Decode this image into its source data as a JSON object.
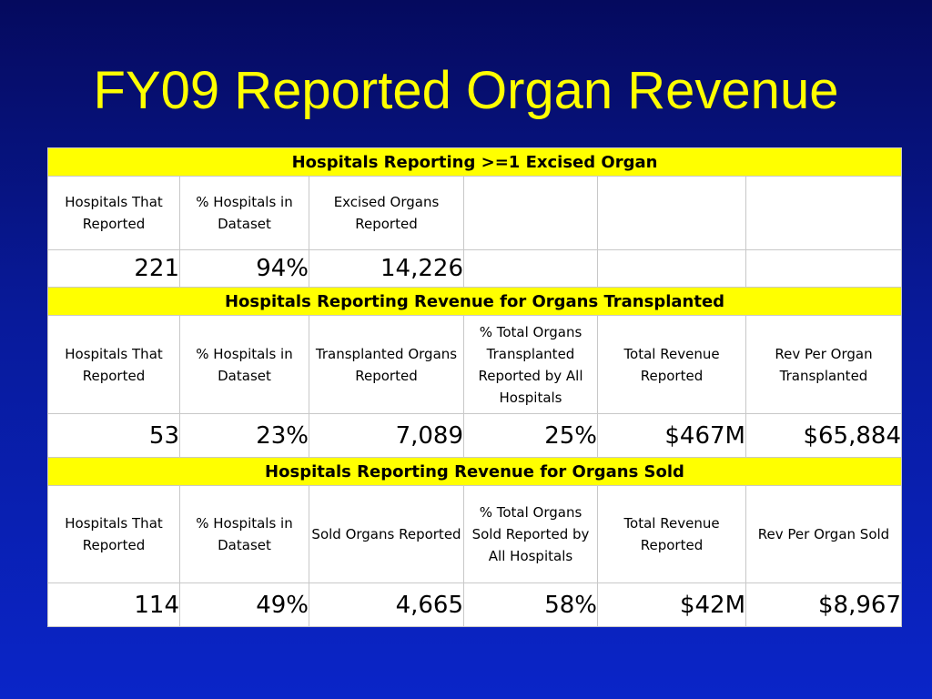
{
  "slide": {
    "title": "FY09 Reported Organ Revenue"
  },
  "sections": [
    {
      "header": "Hospitals Reporting >=1 Excised Organ",
      "columns": [
        "Hospitals That Reported",
        "% Hospitals in Dataset",
        "Excised Organs Reported",
        "",
        "",
        ""
      ],
      "values": [
        "221",
        "94%",
        "14,226",
        "",
        "",
        ""
      ]
    },
    {
      "header": "Hospitals Reporting Revenue for Organs Transplanted",
      "columns": [
        "Hospitals That Reported",
        "% Hospitals in Dataset",
        "Transplanted Organs Reported",
        "% Total Organs Transplanted Reported by All Hospitals",
        "Total Revenue Reported",
        "Rev Per Organ Transplanted"
      ],
      "values": [
        "53",
        "23%",
        "7,089",
        "25%",
        "$467M",
        "$65,884"
      ]
    },
    {
      "header": "Hospitals Reporting Revenue for Organs Sold",
      "columns": [
        "Hospitals That Reported",
        "% Hospitals in Dataset",
        "Sold Organs Reported",
        "% Total Organs Sold Reported by All Hospitals",
        "Total Revenue Reported",
        "Rev Per Organ Sold"
      ],
      "values": [
        "114",
        "49%",
        "4,665",
        "58%",
        "$42M",
        "$8,967"
      ]
    }
  ],
  "colors": {
    "title": "#ffff00",
    "section_header_bg": "#ffff00",
    "background_top": "#050a5e",
    "background_bottom": "#0a25c8"
  }
}
